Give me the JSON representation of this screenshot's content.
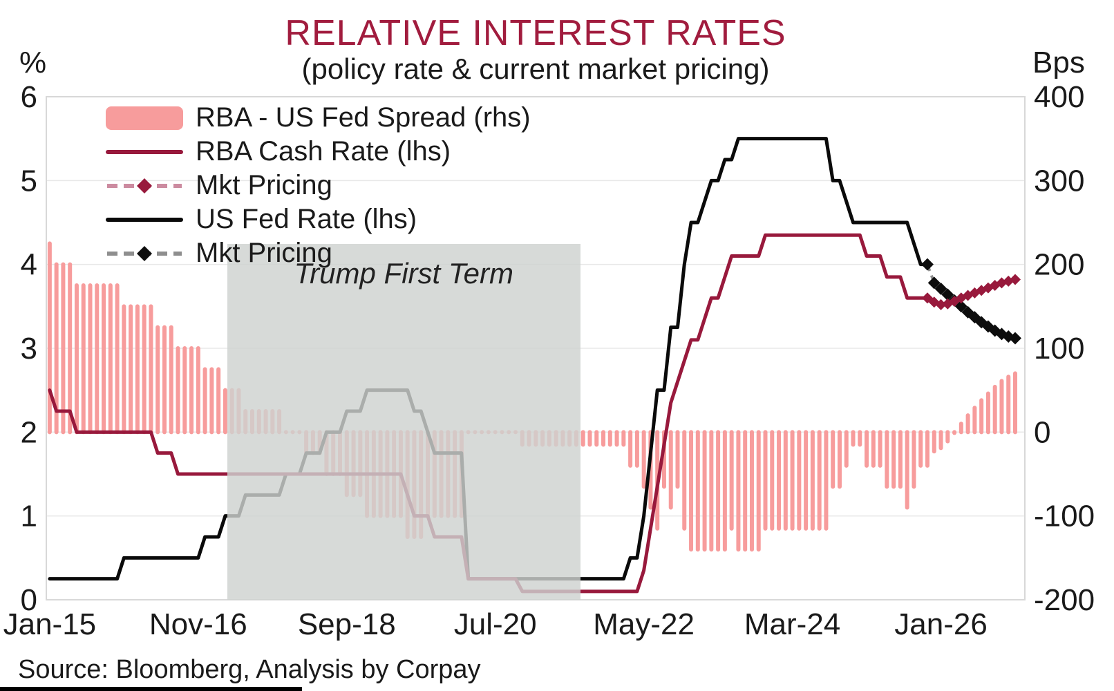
{
  "title": "RELATIVE INTEREST RATES",
  "subtitle": "(policy rate & current market pricing)",
  "source": "Source: Bloomberg, Analysis by Corpay",
  "left_axis": {
    "unit": "%",
    "min": 0,
    "max": 6,
    "ticks": [
      6,
      5,
      4,
      3,
      2,
      1,
      0
    ]
  },
  "right_axis": {
    "unit": "Bps",
    "min": -200,
    "max": 400,
    "ticks": [
      400,
      300,
      200,
      100,
      0,
      -100,
      -200
    ]
  },
  "x_axis": {
    "tick_labels": [
      "Jan-15",
      "Nov-16",
      "Sep-18",
      "Jul-20",
      "May-22",
      "Mar-24",
      "Jan-26"
    ],
    "tick_months": [
      0,
      22,
      44,
      66,
      88,
      110,
      132
    ],
    "start": "Jan-2015",
    "frequency": "monthly",
    "months_total": 144
  },
  "legend": [
    {
      "label": "RBA - US Fed Spread (rhs)",
      "swatch": "bar"
    },
    {
      "label": "RBA Cash Rate (lhs)",
      "swatch": "line-rba"
    },
    {
      "label": "Mkt Pricing",
      "swatch": "dash-diamond-rba"
    },
    {
      "label": "US Fed Rate (lhs)",
      "swatch": "line-fed"
    },
    {
      "label": "Mkt Pricing",
      "swatch": "dash-diamond-fed"
    }
  ],
  "annotation": {
    "label": "Trump First Term",
    "start_month": 26.8,
    "end_month": 79.1
  },
  "colors": {
    "title": "#A11C3E",
    "bar": "#F79C9C",
    "rba_line": "#98193C",
    "fed_line": "#0A0A0A",
    "rba_dash": "#CC8BA0",
    "fed_dash": "#8E8E8E",
    "rba_diamond": "#98193C",
    "fed_diamond": "#0D0D0D",
    "grid": "#E8E8E8",
    "plot_border": "#D8D8D8",
    "annotation_box": "#CED2CF"
  },
  "chart_data": {
    "type": "combo",
    "x_start": "Jan-2015",
    "frequency": "monthly",
    "left_axis_range": [
      0,
      6
    ],
    "right_axis_range": [
      -200,
      400
    ],
    "grid": "horizontal-light",
    "legend_position": "top-left-inside",
    "series": [
      {
        "name": "RBA - US Fed Spread (rhs)",
        "type": "bar",
        "axis": "right",
        "unit": "bps",
        "start_index": 0,
        "values": [
          225,
          200,
          200,
          200,
          175,
          175,
          175,
          175,
          175,
          175,
          175,
          150,
          150,
          150,
          150,
          150,
          125,
          125,
          125,
          100,
          100,
          100,
          100,
          75,
          75,
          75,
          50,
          50,
          50,
          25,
          25,
          25,
          25,
          25,
          25,
          0,
          0,
          0,
          -25,
          -25,
          -25,
          -50,
          -50,
          -50,
          -75,
          -75,
          -75,
          -100,
          -100,
          -100,
          -100,
          -100,
          -100,
          -125,
          -125,
          -125,
          -100,
          -100,
          -100,
          -100,
          -100,
          -100,
          0,
          0,
          0,
          0,
          0,
          0,
          0,
          0,
          -15,
          -15,
          -15,
          -15,
          -15,
          -15,
          -15,
          -15,
          -15,
          -15,
          -15,
          -15,
          -15,
          -15,
          -15,
          -15,
          -40,
          -40,
          -65,
          -90,
          -115,
          -65,
          -90,
          -65,
          -115,
          -140,
          -140,
          -140,
          -140,
          -140,
          -140,
          -115,
          -140,
          -140,
          -140,
          -140,
          -115,
          -115,
          -115,
          -115,
          -115,
          -115,
          -115,
          -115,
          -115,
          -115,
          -65,
          -65,
          -40,
          -15,
          -15,
          -40,
          -40,
          -40,
          -65,
          -65,
          -65,
          -90,
          -65,
          -40,
          -40,
          -23,
          -19,
          -11,
          -1,
          10,
          20,
          29,
          38,
          46,
          54,
          61,
          66,
          70
        ]
      },
      {
        "name": "RBA Cash Rate (lhs)",
        "type": "line",
        "axis": "left",
        "unit": "%",
        "start_index": 0,
        "values": [
          2.5,
          2.25,
          2.25,
          2.25,
          2,
          2,
          2,
          2,
          2,
          2,
          2,
          2,
          2,
          2,
          2,
          2,
          1.75,
          1.75,
          1.75,
          1.5,
          1.5,
          1.5,
          1.5,
          1.5,
          1.5,
          1.5,
          1.5,
          1.5,
          1.5,
          1.5,
          1.5,
          1.5,
          1.5,
          1.5,
          1.5,
          1.5,
          1.5,
          1.5,
          1.5,
          1.5,
          1.5,
          1.5,
          1.5,
          1.5,
          1.5,
          1.5,
          1.5,
          1.5,
          1.5,
          1.5,
          1.5,
          1.5,
          1.5,
          1.25,
          1,
          1,
          1,
          0.75,
          0.75,
          0.75,
          0.75,
          0.75,
          0.25,
          0.25,
          0.25,
          0.25,
          0.25,
          0.25,
          0.25,
          0.25,
          0.1,
          0.1,
          0.1,
          0.1,
          0.1,
          0.1,
          0.1,
          0.1,
          0.1,
          0.1,
          0.1,
          0.1,
          0.1,
          0.1,
          0.1,
          0.1,
          0.1,
          0.1,
          0.35,
          0.85,
          1.35,
          1.85,
          2.35,
          2.6,
          2.85,
          3.1,
          3.1,
          3.35,
          3.6,
          3.6,
          3.85,
          4.1,
          4.1,
          4.1,
          4.1,
          4.1,
          4.35,
          4.35,
          4.35,
          4.35,
          4.35,
          4.35,
          4.35,
          4.35,
          4.35,
          4.35,
          4.35,
          4.35,
          4.35,
          4.35,
          4.35,
          4.1,
          4.1,
          4.1,
          3.85,
          3.85,
          3.85,
          3.6,
          3.6,
          3.6,
          3.6
        ]
      },
      {
        "name": "Mkt Pricing",
        "parent": "RBA Cash Rate",
        "type": "dashed-diamond",
        "axis": "left",
        "unit": "%",
        "start_index": 130,
        "values": [
          3.6,
          3.55,
          3.52,
          3.53,
          3.56,
          3.6,
          3.63,
          3.66,
          3.69,
          3.72,
          3.75,
          3.78,
          3.8,
          3.82
        ]
      },
      {
        "name": "US Fed Rate (lhs)",
        "type": "line",
        "axis": "left",
        "unit": "%",
        "start_index": 0,
        "values": [
          0.25,
          0.25,
          0.25,
          0.25,
          0.25,
          0.25,
          0.25,
          0.25,
          0.25,
          0.25,
          0.25,
          0.5,
          0.5,
          0.5,
          0.5,
          0.5,
          0.5,
          0.5,
          0.5,
          0.5,
          0.5,
          0.5,
          0.5,
          0.75,
          0.75,
          0.75,
          1,
          1,
          1,
          1.25,
          1.25,
          1.25,
          1.25,
          1.25,
          1.25,
          1.5,
          1.5,
          1.5,
          1.75,
          1.75,
          1.75,
          2,
          2,
          2,
          2.25,
          2.25,
          2.25,
          2.5,
          2.5,
          2.5,
          2.5,
          2.5,
          2.5,
          2.5,
          2.25,
          2.25,
          2,
          1.75,
          1.75,
          1.75,
          1.75,
          1.75,
          0.25,
          0.25,
          0.25,
          0.25,
          0.25,
          0.25,
          0.25,
          0.25,
          0.25,
          0.25,
          0.25,
          0.25,
          0.25,
          0.25,
          0.25,
          0.25,
          0.25,
          0.25,
          0.25,
          0.25,
          0.25,
          0.25,
          0.25,
          0.25,
          0.5,
          0.5,
          1,
          1.75,
          2.5,
          2.5,
          3.25,
          3.25,
          4,
          4.5,
          4.5,
          4.75,
          5,
          5,
          5.25,
          5.25,
          5.5,
          5.5,
          5.5,
          5.5,
          5.5,
          5.5,
          5.5,
          5.5,
          5.5,
          5.5,
          5.5,
          5.5,
          5.5,
          5.5,
          5,
          5,
          4.75,
          4.5,
          4.5,
          4.5,
          4.5,
          4.5,
          4.5,
          4.5,
          4.5,
          4.5,
          4.25,
          4,
          4
        ]
      },
      {
        "name": "Mkt Pricing",
        "parent": "US Fed Rate",
        "type": "dashed-diamond",
        "axis": "left",
        "unit": "%",
        "start_index": 130,
        "values": [
          4,
          3.78,
          3.71,
          3.64,
          3.57,
          3.5,
          3.43,
          3.37,
          3.31,
          3.26,
          3.21,
          3.17,
          3.14,
          3.12
        ]
      }
    ]
  }
}
